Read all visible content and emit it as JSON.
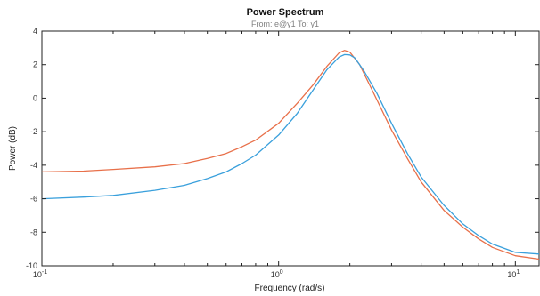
{
  "chart_data": {
    "type": "line",
    "title": "Power Spectrum",
    "subtitle": "From: e@y1  To: y1",
    "xlabel": "Frequency  (rad/s)",
    "ylabel": "Power (dB)",
    "xscale": "log",
    "xlim": [
      0.1,
      12.6
    ],
    "ylim": [
      -10,
      4
    ],
    "x_ticks": [
      {
        "base": "10",
        "exp": "-1",
        "value": 0.1
      },
      {
        "base": "10",
        "exp": "0",
        "value": 1
      },
      {
        "base": "10",
        "exp": "1",
        "value": 10
      }
    ],
    "y_ticks": [
      "4",
      "2",
      "0",
      "-2",
      "-4",
      "-6",
      "-8",
      "-10"
    ],
    "y_tick_values": [
      4,
      2,
      0,
      -2,
      -4,
      -6,
      -8,
      -10
    ],
    "grid": false,
    "legend": "none",
    "series": [
      {
        "color": "#e8704a",
        "x": [
          0.1,
          0.15,
          0.2,
          0.3,
          0.4,
          0.5,
          0.6,
          0.7,
          0.8,
          1.0,
          1.2,
          1.4,
          1.6,
          1.8,
          1.9,
          2.0,
          2.2,
          2.5,
          3.0,
          3.5,
          4.0,
          5.0,
          6.0,
          7.0,
          8.0,
          10.0,
          12.6
        ],
        "y": [
          -4.4,
          -4.35,
          -4.25,
          -4.1,
          -3.9,
          -3.6,
          -3.3,
          -2.9,
          -2.5,
          -1.5,
          -0.3,
          0.8,
          1.9,
          2.7,
          2.85,
          2.75,
          2.0,
          0.4,
          -1.9,
          -3.6,
          -5.0,
          -6.7,
          -7.7,
          -8.4,
          -8.9,
          -9.4,
          -9.6
        ]
      },
      {
        "color": "#3aa0dc",
        "x": [
          0.1,
          0.15,
          0.2,
          0.3,
          0.4,
          0.5,
          0.6,
          0.7,
          0.8,
          1.0,
          1.2,
          1.4,
          1.6,
          1.8,
          1.9,
          2.0,
          2.1,
          2.3,
          2.6,
          3.0,
          3.5,
          4.0,
          5.0,
          6.0,
          7.0,
          8.0,
          10.0,
          12.6
        ],
        "y": [
          -6.0,
          -5.9,
          -5.8,
          -5.5,
          -5.2,
          -4.8,
          -4.4,
          -3.9,
          -3.4,
          -2.2,
          -0.9,
          0.5,
          1.7,
          2.45,
          2.6,
          2.58,
          2.4,
          1.6,
          0.3,
          -1.5,
          -3.3,
          -4.7,
          -6.4,
          -7.5,
          -8.2,
          -8.7,
          -9.2,
          -9.3
        ]
      }
    ]
  }
}
